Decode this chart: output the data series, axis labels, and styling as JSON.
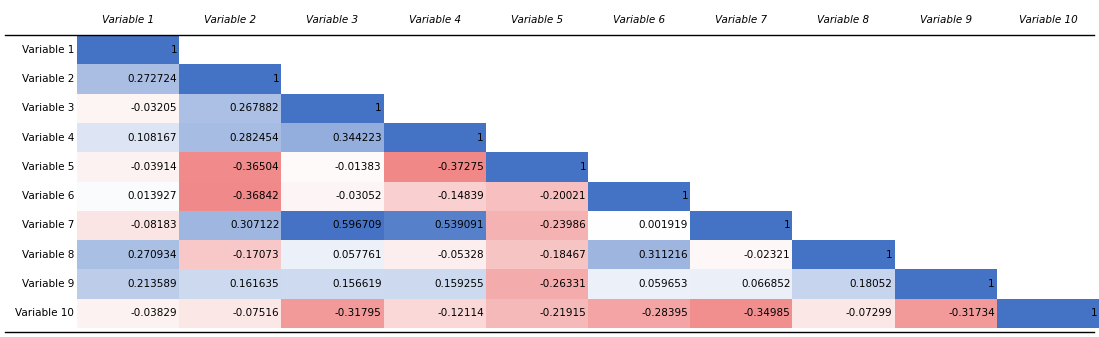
{
  "variables": [
    "Variable 1",
    "Variable 2",
    "Variable 3",
    "Variable 4",
    "Variable 5",
    "Variable 6",
    "Variable 7",
    "Variable 8",
    "Variable 9",
    "Variable 10"
  ],
  "matrix": [
    [
      1.0,
      null,
      null,
      null,
      null,
      null,
      null,
      null,
      null,
      null
    ],
    [
      0.272724,
      1.0,
      null,
      null,
      null,
      null,
      null,
      null,
      null,
      null
    ],
    [
      -0.03205,
      0.267882,
      1.0,
      null,
      null,
      null,
      null,
      null,
      null,
      null
    ],
    [
      0.108167,
      0.282454,
      0.344223,
      1.0,
      null,
      null,
      null,
      null,
      null,
      null
    ],
    [
      -0.03914,
      -0.36504,
      -0.01383,
      -0.37275,
      1.0,
      null,
      null,
      null,
      null,
      null
    ],
    [
      0.013927,
      -0.36842,
      -0.03052,
      -0.14839,
      -0.20021,
      1.0,
      null,
      null,
      null,
      null
    ],
    [
      -0.08183,
      0.307122,
      0.596709,
      0.539091,
      -0.23986,
      0.001919,
      1.0,
      null,
      null,
      null
    ],
    [
      0.270934,
      -0.17073,
      0.057761,
      -0.05328,
      -0.18467,
      0.311216,
      -0.02321,
      1.0,
      null,
      null
    ],
    [
      0.213589,
      0.161635,
      0.156619,
      0.159255,
      -0.26331,
      0.059653,
      0.066852,
      0.18052,
      1.0,
      null
    ],
    [
      -0.03829,
      -0.07516,
      -0.31795,
      -0.12114,
      -0.21915,
      -0.28395,
      -0.34985,
      -0.07299,
      -0.31734,
      1.0
    ]
  ],
  "display_values": [
    [
      "1",
      "",
      "",
      "",
      "",
      "",
      "",
      "",
      "",
      ""
    ],
    [
      "0.272724",
      "1",
      "",
      "",
      "",
      "",
      "",
      "",
      "",
      ""
    ],
    [
      "-0.03205",
      "0.267882",
      "1",
      "",
      "",
      "",
      "",
      "",
      "",
      ""
    ],
    [
      "0.108167",
      "0.282454",
      "0.344223",
      "1",
      "",
      "",
      "",
      "",
      "",
      ""
    ],
    [
      "-0.03914",
      "-0.36504",
      "-0.01383",
      "-0.37275",
      "1",
      "",
      "",
      "",
      "",
      ""
    ],
    [
      "0.013927",
      "-0.36842",
      "-0.03052",
      "-0.14839",
      "-0.20021",
      "1",
      "",
      "",
      "",
      ""
    ],
    [
      "-0.08183",
      "0.307122",
      "0.596709",
      "0.539091",
      "-0.23986",
      "0.001919",
      "1",
      "",
      "",
      ""
    ],
    [
      "0.270934",
      "-0.17073",
      "0.057761",
      "-0.05328",
      "-0.18467",
      "0.311216",
      "-0.02321",
      "1",
      "",
      ""
    ],
    [
      "0.213589",
      "0.161635",
      "0.156619",
      "0.159255",
      "-0.26331",
      "0.059653",
      "0.066852",
      "0.18052",
      "1",
      ""
    ],
    [
      "-0.03829",
      "-0.07516",
      "-0.31795",
      "-0.12114",
      "-0.21915",
      "-0.28395",
      "-0.34985",
      "-0.07299",
      "-0.31734",
      "1"
    ]
  ],
  "bg_color": "#FFFFFF",
  "font_size_header": 7.5,
  "font_size_cell": 7.5,
  "n": 10
}
